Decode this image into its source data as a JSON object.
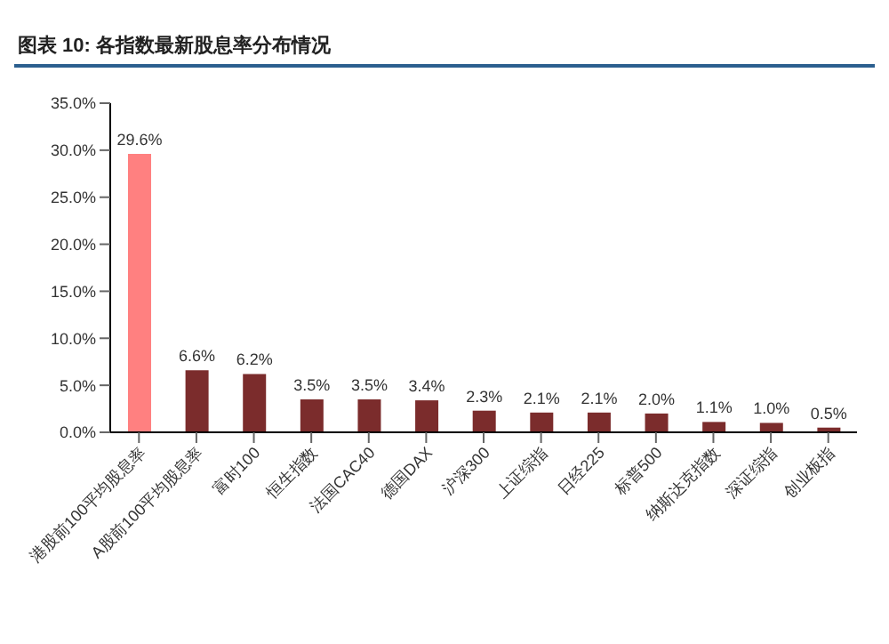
{
  "chart_data": {
    "type": "bar",
    "title": "图表 10: 各指数最新股息率分布情况",
    "categories": [
      "港股前100平均股息率",
      "A股前100平均股息率",
      "富时100",
      "恒生指数",
      "法国CAC40",
      "德国DAX",
      "沪深300",
      "上证综指",
      "日经225",
      "标普500",
      "纳斯达克指数",
      "深证综指",
      "创业板指"
    ],
    "values": [
      29.6,
      6.6,
      6.2,
      3.5,
      3.5,
      3.4,
      2.3,
      2.1,
      2.1,
      2.0,
      1.1,
      1.0,
      0.5
    ],
    "colors": [
      "#ff8080",
      "#7b2c2c",
      "#7b2c2c",
      "#7b2c2c",
      "#7b2c2c",
      "#7b2c2c",
      "#7b2c2c",
      "#7b2c2c",
      "#7b2c2c",
      "#7b2c2c",
      "#7b2c2c",
      "#7b2c2c",
      "#7b2c2c"
    ],
    "ylim": [
      0,
      35
    ],
    "yticks": [
      {
        "value": 0,
        "label": "0.0%"
      },
      {
        "value": 5,
        "label": "5.0%"
      },
      {
        "value": 10,
        "label": "10.0%"
      },
      {
        "value": 15,
        "label": "15.0%"
      },
      {
        "value": 20,
        "label": "20.0%"
      },
      {
        "value": 25,
        "label": "25.0%"
      },
      {
        "value": 30,
        "label": "30.0%"
      },
      {
        "value": 35,
        "label": "35.0%"
      }
    ],
    "value_labels": [
      "29.6%",
      "6.6%",
      "6.2%",
      "3.5%",
      "3.5%",
      "3.4%",
      "2.3%",
      "2.1%",
      "2.1%",
      "2.0%",
      "1.1%",
      "1.0%",
      "0.5%"
    ]
  }
}
